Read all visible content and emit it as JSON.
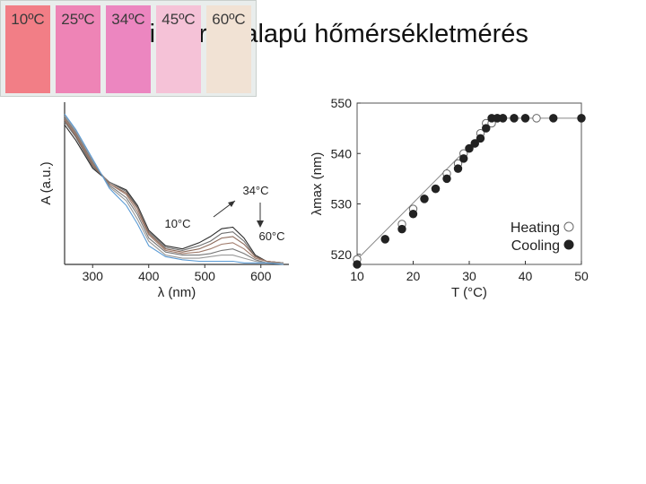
{
  "title": "Spiropirán alapú hőmérsékletmérés",
  "chart_data": [
    {
      "type": "line",
      "xlabel": "λ (nm)",
      "ylabel": "A (a.u.)",
      "xlim": [
        250,
        650
      ],
      "x_ticks": [
        300,
        400,
        500,
        600
      ],
      "annotations": [
        "34°C",
        "10°C",
        "60°C"
      ],
      "series": [
        {
          "color": "#2d2d2d",
          "x": [
            250,
            270,
            300,
            330,
            360,
            380,
            400,
            430,
            460,
            490,
            510,
            530,
            550,
            570,
            590,
            610,
            640
          ],
          "y": [
            0.9,
            0.8,
            0.62,
            0.53,
            0.48,
            0.38,
            0.22,
            0.12,
            0.1,
            0.14,
            0.18,
            0.23,
            0.24,
            0.17,
            0.06,
            0.02,
            0.01
          ]
        },
        {
          "color": "#6f6f6f",
          "x": [
            250,
            270,
            300,
            330,
            360,
            380,
            400,
            430,
            460,
            490,
            510,
            530,
            550,
            570,
            590,
            610,
            640
          ],
          "y": [
            0.92,
            0.82,
            0.63,
            0.53,
            0.47,
            0.37,
            0.21,
            0.11,
            0.09,
            0.12,
            0.15,
            0.2,
            0.21,
            0.15,
            0.05,
            0.02,
            0.01
          ]
        },
        {
          "color": "#8c6a5a",
          "x": [
            250,
            270,
            300,
            330,
            360,
            380,
            400,
            430,
            460,
            490,
            510,
            530,
            550,
            570,
            590,
            610,
            640
          ],
          "y": [
            0.93,
            0.83,
            0.64,
            0.52,
            0.46,
            0.36,
            0.2,
            0.1,
            0.08,
            0.1,
            0.13,
            0.17,
            0.18,
            0.13,
            0.05,
            0.02,
            0.01
          ]
        },
        {
          "color": "#a07b6b",
          "x": [
            250,
            270,
            300,
            330,
            360,
            380,
            400,
            430,
            460,
            490,
            510,
            530,
            550,
            570,
            590,
            610,
            640
          ],
          "y": [
            0.94,
            0.84,
            0.65,
            0.52,
            0.45,
            0.34,
            0.19,
            0.09,
            0.07,
            0.08,
            0.1,
            0.13,
            0.14,
            0.1,
            0.04,
            0.02,
            0.01
          ]
        },
        {
          "color": "#777777",
          "x": [
            250,
            270,
            300,
            330,
            360,
            380,
            400,
            430,
            460,
            490,
            510,
            530,
            550,
            570,
            590,
            610,
            640
          ],
          "y": [
            0.95,
            0.85,
            0.66,
            0.51,
            0.43,
            0.32,
            0.17,
            0.08,
            0.06,
            0.06,
            0.07,
            0.09,
            0.1,
            0.07,
            0.03,
            0.01,
            0.01
          ]
        },
        {
          "color": "#999999",
          "x": [
            250,
            270,
            300,
            330,
            360,
            380,
            400,
            430,
            460,
            490,
            510,
            530,
            550,
            570,
            590,
            610,
            640
          ],
          "y": [
            0.96,
            0.86,
            0.67,
            0.5,
            0.41,
            0.29,
            0.15,
            0.06,
            0.04,
            0.04,
            0.05,
            0.06,
            0.06,
            0.04,
            0.02,
            0.01,
            0.01
          ]
        },
        {
          "color": "#5b9bd5",
          "x": [
            250,
            270,
            300,
            330,
            360,
            380,
            400,
            430,
            460,
            490,
            510,
            530,
            550,
            570,
            590,
            610,
            640
          ],
          "y": [
            0.97,
            0.87,
            0.68,
            0.49,
            0.38,
            0.26,
            0.12,
            0.05,
            0.03,
            0.02,
            0.02,
            0.02,
            0.02,
            0.01,
            0.01,
            0.01,
            0.0
          ]
        }
      ]
    },
    {
      "type": "scatter",
      "xlabel": "T (°C)",
      "ylabel": "λmax (nm)",
      "xlim": [
        10,
        50
      ],
      "ylim": [
        518,
        550
      ],
      "x_ticks": [
        10,
        20,
        30,
        40,
        50
      ],
      "y_ticks": [
        520,
        530,
        540,
        550
      ],
      "legend": "bottom-right",
      "series": [
        {
          "name": "Heating",
          "marker": "open-circle",
          "x": [
            10,
            15,
            18,
            20,
            22,
            24,
            26,
            28,
            29,
            30,
            31,
            32,
            33,
            34,
            35,
            36,
            38,
            40,
            42,
            50
          ],
          "y": [
            519,
            523,
            526,
            529,
            531,
            533,
            536,
            538,
            540,
            541,
            542,
            544,
            546,
            546,
            547,
            547,
            547,
            547,
            547,
            547
          ]
        },
        {
          "name": "Cooling",
          "marker": "filled-circle",
          "x": [
            10,
            15,
            18,
            20,
            22,
            24,
            26,
            28,
            29,
            30,
            31,
            32,
            33,
            34,
            35,
            36,
            38,
            40,
            45,
            50
          ],
          "y": [
            518,
            523,
            525,
            528,
            531,
            533,
            535,
            537,
            539,
            541,
            542,
            543,
            545,
            547,
            547,
            547,
            547,
            547,
            547,
            547
          ]
        }
      ],
      "fit_line": {
        "x": [
          10,
          35,
          50
        ],
        "y": [
          519,
          547,
          547
        ]
      }
    }
  ],
  "swatches": [
    {
      "label": "10ºC",
      "color": "#f27e86"
    },
    {
      "label": "25ºC",
      "color": "#ee84b6"
    },
    {
      "label": "34ºC",
      "color": "#ec86c0"
    },
    {
      "label": "45ºC",
      "color": "#f5c2d7"
    },
    {
      "label": "60ºC",
      "color": "#f1e2d4"
    }
  ]
}
